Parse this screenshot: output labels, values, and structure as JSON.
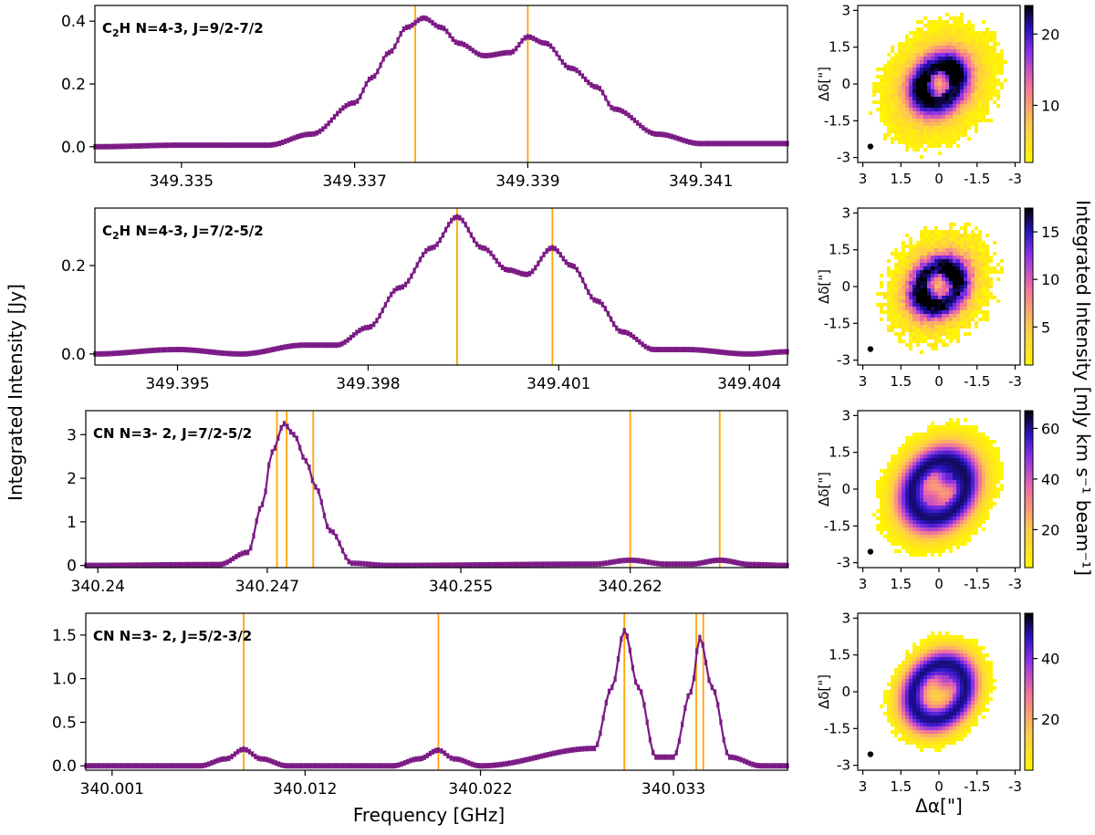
{
  "figure": {
    "ylabel": "Integrated Intensity [Jy]",
    "xlabel": "Frequency [GHz]",
    "map_ylabel": "Δδ[\"]",
    "map_xlabel": "Δα[\"]",
    "cbar_label": "Integrated Intensity [mJy km s⁻¹ beam⁻¹]"
  },
  "colors": {
    "spectrum": "#7b1a85",
    "lines": "#ffa500"
  },
  "chart_data": [
    {
      "type": "line",
      "title_parts": [
        "C",
        "2",
        "H N=4-3, J=9/2-7/2"
      ],
      "xlim": [
        349.334,
        349.342
      ],
      "ylim": [
        -0.05,
        0.45
      ],
      "xticks": [
        349.335,
        349.337,
        349.339,
        349.341
      ],
      "xtick_labels": [
        "349.335",
        "349.337",
        "349.339",
        "349.341"
      ],
      "yticks": [
        0.0,
        0.2,
        0.4
      ],
      "ytick_labels": [
        "0.0",
        "0.2",
        "0.4"
      ],
      "vlines": [
        349.3377,
        349.339
      ],
      "x": [
        349.334,
        349.335,
        349.336,
        349.3365,
        349.337,
        349.3372,
        349.3374,
        349.3376,
        349.3378,
        349.338,
        349.3382,
        349.3385,
        349.3388,
        349.339,
        349.3392,
        349.3395,
        349.3398,
        349.34,
        349.3405,
        349.341,
        349.342
      ],
      "y": [
        0.0,
        0.005,
        0.005,
        0.04,
        0.14,
        0.22,
        0.3,
        0.38,
        0.41,
        0.38,
        0.33,
        0.29,
        0.3,
        0.35,
        0.33,
        0.25,
        0.19,
        0.12,
        0.04,
        0.01,
        0.01
      ]
    },
    {
      "type": "line",
      "title_parts": [
        "C",
        "2",
        "H N=4-3, J=7/2-5/2"
      ],
      "xlim": [
        349.3937,
        349.4046
      ],
      "ylim": [
        -0.025,
        0.33
      ],
      "xticks": [
        349.395,
        349.398,
        349.401,
        349.404
      ],
      "xtick_labels": [
        "349.395",
        "349.398",
        "349.401",
        "349.404"
      ],
      "yticks": [
        0.0,
        0.2
      ],
      "ytick_labels": [
        "0.0",
        "0.2"
      ],
      "vlines": [
        349.3994,
        349.4009
      ],
      "x": [
        349.3937,
        349.395,
        349.396,
        349.397,
        349.3975,
        349.398,
        349.3985,
        349.399,
        349.3994,
        349.3998,
        349.4002,
        349.4005,
        349.4009,
        349.4012,
        349.4016,
        349.402,
        349.4025,
        349.403,
        349.404,
        349.4046
      ],
      "y": [
        0.0,
        0.01,
        0.0,
        0.02,
        0.02,
        0.06,
        0.15,
        0.24,
        0.31,
        0.24,
        0.19,
        0.18,
        0.24,
        0.2,
        0.12,
        0.05,
        0.01,
        0.01,
        0.0,
        0.005
      ]
    },
    {
      "type": "line",
      "title_parts": [
        "CN N=3- 2, J=7/2-5/2"
      ],
      "xlim": [
        340.2395,
        340.2685
      ],
      "ylim": [
        -0.05,
        3.55
      ],
      "xticks": [
        340.24,
        340.247,
        340.255,
        340.262
      ],
      "xtick_labels": [
        "340.24",
        "340.247",
        "340.255",
        "340.262"
      ],
      "yticks": [
        0,
        1,
        2,
        3
      ],
      "ytick_labels": [
        "0",
        "1",
        "2",
        "3"
      ],
      "vlines": [
        340.2474,
        340.2478,
        340.2489,
        340.262,
        340.2657
      ],
      "x": [
        340.2395,
        340.245,
        340.2462,
        340.2468,
        340.2472,
        340.2477,
        340.2481,
        340.2486,
        340.249,
        340.2496,
        340.2505,
        340.252,
        340.2605,
        340.262,
        340.2635,
        340.2645,
        340.2657,
        340.267,
        340.2685
      ],
      "y": [
        0.0,
        0.02,
        0.3,
        1.4,
        2.6,
        3.25,
        3.0,
        2.4,
        1.8,
        0.8,
        0.05,
        0.0,
        0.03,
        0.12,
        0.03,
        0.03,
        0.12,
        0.02,
        0.0
      ]
    },
    {
      "type": "line",
      "title_parts": [
        "CN N=3- 2, J=5/2-3/2"
      ],
      "xlim": [
        339.9995,
        340.0395
      ],
      "ylim": [
        -0.05,
        1.75
      ],
      "xticks": [
        340.001,
        340.012,
        340.022,
        340.033
      ],
      "xtick_labels": [
        "340.001",
        "340.012",
        "340.022",
        "340.033"
      ],
      "yticks": [
        0.0,
        0.5,
        1.0,
        1.5
      ],
      "ytick_labels": [
        "0.0",
        "0.5",
        "1.0",
        "1.5"
      ],
      "vlines": [
        340.0085,
        340.0196,
        340.0302,
        340.0343,
        340.0347
      ],
      "x": [
        339.9995,
        340.006,
        340.0075,
        340.0085,
        340.0095,
        340.011,
        340.017,
        340.0185,
        340.0196,
        340.0205,
        340.022,
        340.0285,
        340.0295,
        340.0302,
        340.031,
        340.032,
        340.033,
        340.034,
        340.0345,
        340.0352,
        340.0362,
        340.038,
        340.0395
      ],
      "y": [
        0.0,
        0.0,
        0.08,
        0.19,
        0.08,
        0.0,
        0.0,
        0.08,
        0.18,
        0.08,
        0.0,
        0.2,
        0.9,
        1.55,
        0.9,
        0.1,
        0.1,
        0.85,
        1.47,
        0.9,
        0.1,
        0.0,
        0.0
      ]
    }
  ],
  "maps": [
    {
      "cbar_ticks": [
        10,
        20
      ],
      "cbar_range": [
        2,
        24
      ],
      "ring": 0.3,
      "blobs": [
        [
          -0.5,
          0.5,
          1.0
        ],
        [
          0.5,
          -0.2,
          0.8
        ]
      ],
      "patchy": 0.22,
      "tilt": -35,
      "rx": 2.3,
      "ry": 2.9
    },
    {
      "cbar_ticks": [
        5,
        10,
        15
      ],
      "cbar_range": [
        1,
        17.5
      ],
      "ring": 0.35,
      "blobs": [
        [
          -0.5,
          0.4,
          1.0
        ],
        [
          0.4,
          -0.4,
          0.85
        ]
      ],
      "patchy": 0.35,
      "tilt": -35,
      "rx": 2.1,
      "ry": 2.6
    },
    {
      "cbar_ticks": [
        20,
        40,
        60
      ],
      "cbar_range": [
        5,
        67
      ],
      "ring": 0.45,
      "blobs": [
        [
          -0.3,
          0.4,
          0.9
        ],
        [
          0.2,
          -0.3,
          0.6
        ]
      ],
      "patchy": 0.0,
      "tilt": -32,
      "rx": 2.3,
      "ry": 2.9
    },
    {
      "cbar_ticks": [
        20,
        40
      ],
      "cbar_range": [
        3,
        55
      ],
      "ring": 0.5,
      "blobs": [
        [
          -0.2,
          0.4,
          0.7
        ]
      ],
      "patchy": 0.0,
      "tilt": -32,
      "rx": 2.0,
      "ry": 2.5
    }
  ],
  "map_axis": {
    "yticks": [
      3,
      1.5,
      0,
      -1.5,
      -3
    ],
    "ytick_labels": [
      "3",
      "1.5",
      "0",
      "-1.5",
      "-3"
    ],
    "xticks": [
      3,
      1.5,
      0,
      -1.5,
      -3
    ],
    "xtick_labels": [
      "3",
      "1.5",
      "0",
      "-1.5",
      "-3"
    ]
  }
}
